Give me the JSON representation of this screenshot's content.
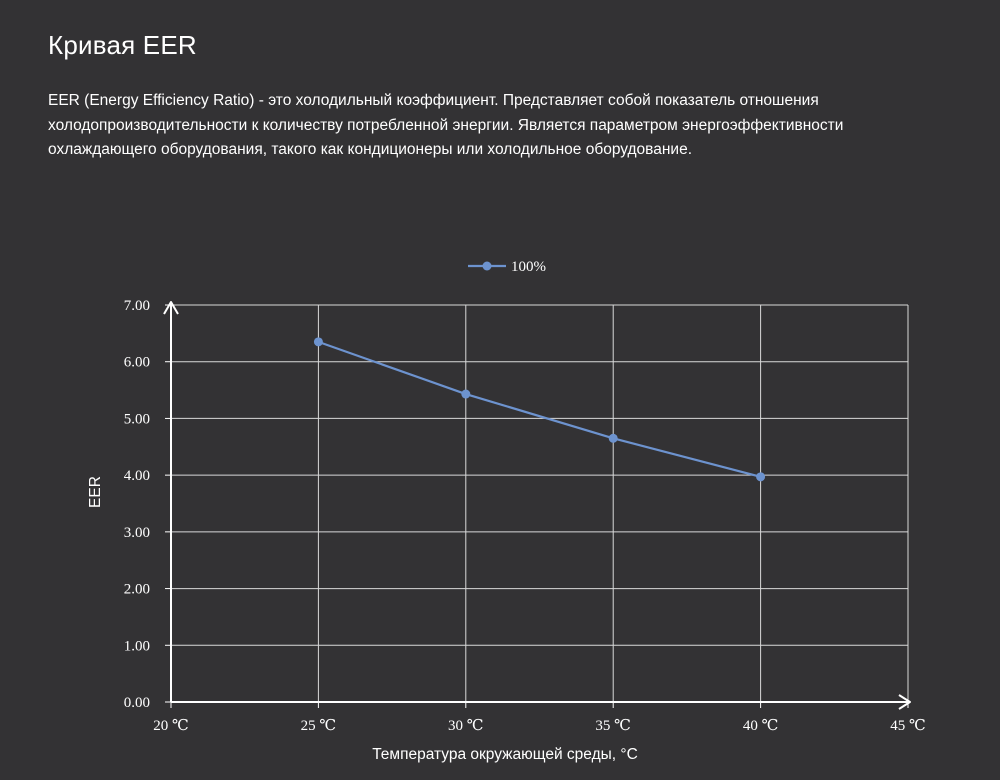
{
  "page": {
    "title": "Кривая EER",
    "description_lines": [
      "EER (Energy Efficiency Ratio) - это холодильный коэффициент. Представляет собой показатель отношения",
      "холодопроизводительности к количеству потребленной энергии. Является параметром энергоэффективности",
      "охлаждающего оборудования, такого как кондиционеры или холодильное оборудование."
    ]
  },
  "chart_data": {
    "type": "line",
    "x": [
      25,
      30,
      35,
      40
    ],
    "x_tick_values": [
      20,
      25,
      30,
      35,
      40,
      45
    ],
    "x_tick_labels": [
      "20 ℃",
      "25 ℃",
      "30 ℃",
      "35 ℃",
      "40 ℃",
      "45 ℃"
    ],
    "y_tick_values": [
      0,
      1,
      2,
      3,
      4,
      5,
      6,
      7
    ],
    "y_tick_labels": [
      "0.00",
      "1.00",
      "2.00",
      "3.00",
      "4.00",
      "5.00",
      "6.00",
      "7.00"
    ],
    "series": [
      {
        "name": "100%",
        "values": [
          6.35,
          5.43,
          4.65,
          3.97
        ],
        "color": "#6d93cf"
      }
    ],
    "xlabel": "Температура окружающей среды, °C",
    "ylabel": "EER",
    "xlim": [
      20,
      45
    ],
    "ylim": [
      0,
      7
    ],
    "grid": true,
    "legend_position": "top-center",
    "colors": {
      "background": "#333234",
      "grid": "#d9d9d9",
      "axis": "#ffffff",
      "text": "#ffffff"
    }
  }
}
